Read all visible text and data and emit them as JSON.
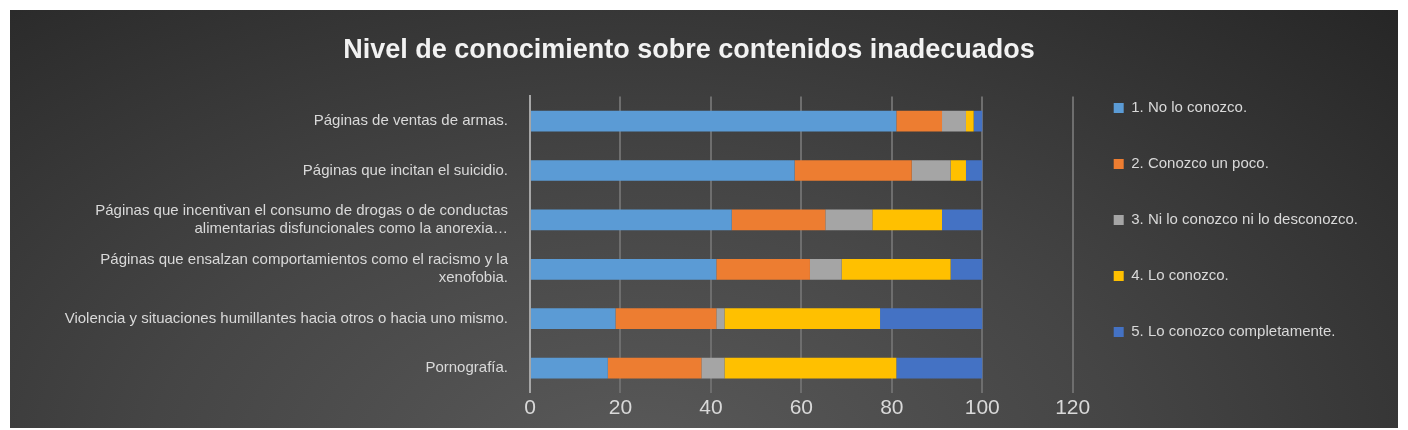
{
  "chart_data": {
    "type": "bar",
    "orientation": "horizontal",
    "stacked": true,
    "title": "Nivel de conocimiento sobre contenidos inadecuados",
    "categories": [
      "Páginas de ventas de armas.",
      "Páginas que incitan el suicidio.",
      "Páginas que incentivan el consumo de drogas o de conductas alimentarias disfuncionales como la anorexia…",
      "Páginas que ensalzan comportamientos como el racismo y la xenofobia.",
      "Violencia y situaciones humillantes hacia otros o hacia uno mismo.",
      "Pornografía."
    ],
    "series": [
      {
        "name": "1. No lo conozco.",
        "color": "#5b9bd5",
        "values": [
          81.0,
          58.5,
          44.6,
          41.2,
          18.9,
          17.2
        ]
      },
      {
        "name": "2. Conozco un poco.",
        "color": "#ed7d31",
        "values": [
          10.1,
          25.9,
          20.7,
          20.7,
          22.3,
          20.7
        ]
      },
      {
        "name": "3. Ni lo conozco ni lo desconozco.",
        "color": "#a5a5a5",
        "values": [
          5.3,
          8.6,
          10.4,
          7.0,
          1.8,
          5.1
        ]
      },
      {
        "name": "4. Lo conozco.",
        "color": "#ffc000",
        "values": [
          1.7,
          3.4,
          15.4,
          24.1,
          34.4,
          38.0
        ]
      },
      {
        "name": "5. Lo conozco completamente.",
        "color": "#4472c4",
        "values": [
          1.9,
          3.6,
          8.9,
          7.0,
          22.6,
          19.0
        ]
      }
    ],
    "xlim": [
      0,
      120
    ],
    "xticks": [
      0,
      20,
      40,
      60,
      80,
      100,
      120
    ],
    "grid": "x",
    "legend": "right"
  }
}
